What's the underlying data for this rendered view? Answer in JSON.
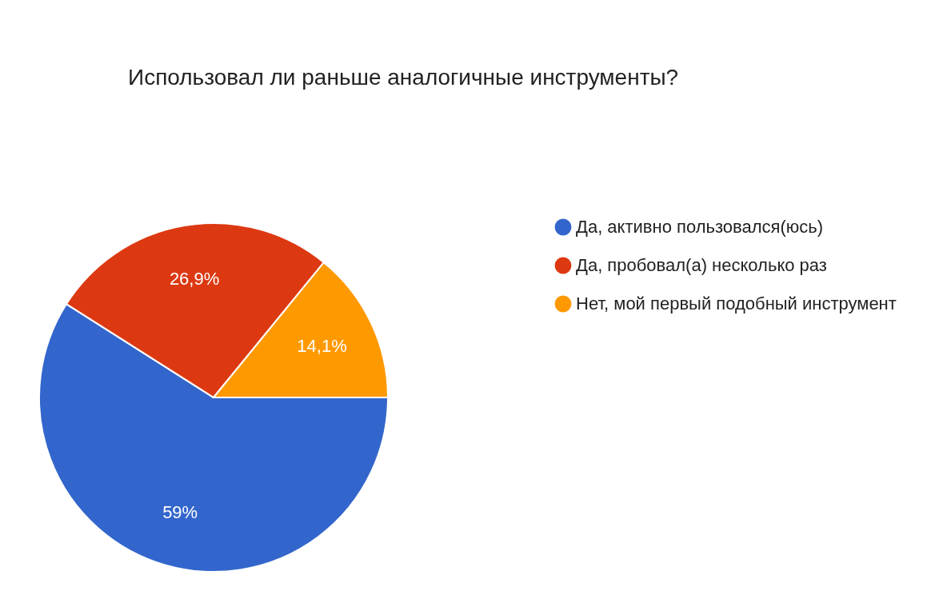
{
  "chart_data": {
    "type": "pie",
    "title": "Использовал ли раньше аналогичные инструменты?",
    "categories": [
      "Да, активно пользовался(юсь)",
      "Да, пробовал(а) несколько раз",
      "Нет, мой первый подобный инструмент"
    ],
    "values": [
      59,
      26.9,
      14.1
    ],
    "colors": [
      "#3366cc",
      "#dc3912",
      "#ff9900"
    ],
    "value_labels": [
      "59%",
      "26,9%",
      "14,1%"
    ],
    "legend": "right"
  }
}
